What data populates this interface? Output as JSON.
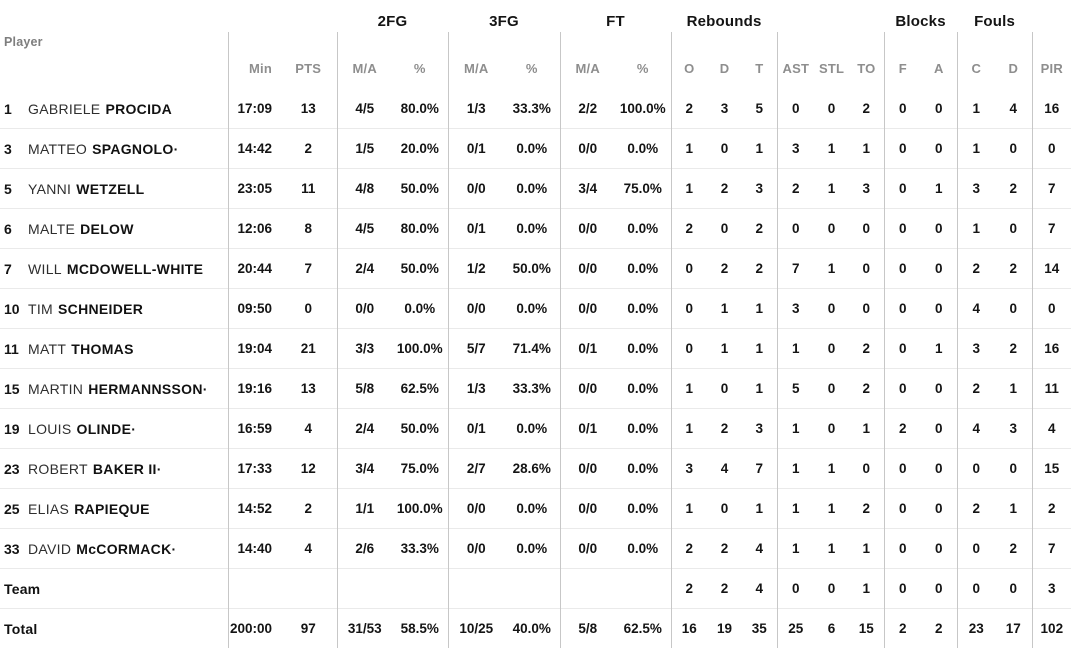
{
  "header": {
    "player": "Player",
    "min": "Min",
    "pts": "PTS",
    "fg2": "2FG",
    "fg3": "3FG",
    "ft": "FT",
    "rebounds": "Rebounds",
    "blocks": "Blocks",
    "fouls": "Fouls",
    "ma": "M/A",
    "pct": "%",
    "o": "O",
    "d": "D",
    "t": "T",
    "ast": "AST",
    "stl": "STL",
    "to": "TO",
    "f": "F",
    "a": "A",
    "c": "C",
    "fouls_d": "D",
    "pir": "PIR"
  },
  "colors": {
    "text_dark": "#141414",
    "text_gray": "#8e8e8e",
    "divider": "#c7c7c7",
    "row_border": "#eaeaea",
    "background": "#ffffff"
  },
  "table": {
    "rows": [
      {
        "number": "1",
        "first": "GABRIELE",
        "last": "PROCIDA",
        "stats": [
          "17:09",
          "13",
          "4/5",
          "80.0%",
          "1/3",
          "33.3%",
          "2/2",
          "100.0%",
          "2",
          "3",
          "5",
          "0",
          "0",
          "2",
          "0",
          "0",
          "1",
          "4",
          "16"
        ]
      },
      {
        "number": "3",
        "first": "MATTEO",
        "last": "SPAGNOLO·",
        "stats": [
          "14:42",
          "2",
          "1/5",
          "20.0%",
          "0/1",
          "0.0%",
          "0/0",
          "0.0%",
          "1",
          "0",
          "1",
          "3",
          "1",
          "1",
          "0",
          "0",
          "1",
          "0",
          "0"
        ]
      },
      {
        "number": "5",
        "first": "YANNI",
        "last": "WETZELL",
        "stats": [
          "23:05",
          "11",
          "4/8",
          "50.0%",
          "0/0",
          "0.0%",
          "3/4",
          "75.0%",
          "1",
          "2",
          "3",
          "2",
          "1",
          "3",
          "0",
          "1",
          "3",
          "2",
          "7"
        ]
      },
      {
        "number": "6",
        "first": "MALTE",
        "last": "DELOW",
        "stats": [
          "12:06",
          "8",
          "4/5",
          "80.0%",
          "0/1",
          "0.0%",
          "0/0",
          "0.0%",
          "2",
          "0",
          "2",
          "0",
          "0",
          "0",
          "0",
          "0",
          "1",
          "0",
          "7"
        ]
      },
      {
        "number": "7",
        "first": "WILL",
        "last": "MCDOWELL-WHITE",
        "stats": [
          "20:44",
          "7",
          "2/4",
          "50.0%",
          "1/2",
          "50.0%",
          "0/0",
          "0.0%",
          "0",
          "2",
          "2",
          "7",
          "1",
          "0",
          "0",
          "0",
          "2",
          "2",
          "14"
        ]
      },
      {
        "number": "10",
        "first": "TIM",
        "last": "SCHNEIDER",
        "stats": [
          "09:50",
          "0",
          "0/0",
          "0.0%",
          "0/0",
          "0.0%",
          "0/0",
          "0.0%",
          "0",
          "1",
          "1",
          "3",
          "0",
          "0",
          "0",
          "0",
          "4",
          "0",
          "0"
        ]
      },
      {
        "number": "11",
        "first": "MATT",
        "last": "THOMAS",
        "stats": [
          "19:04",
          "21",
          "3/3",
          "100.0%",
          "5/7",
          "71.4%",
          "0/1",
          "0.0%",
          "0",
          "1",
          "1",
          "1",
          "0",
          "2",
          "0",
          "1",
          "3",
          "2",
          "16"
        ]
      },
      {
        "number": "15",
        "first": "MARTIN",
        "last": "HERMANNSSON·",
        "stats": [
          "19:16",
          "13",
          "5/8",
          "62.5%",
          "1/3",
          "33.3%",
          "0/0",
          "0.0%",
          "1",
          "0",
          "1",
          "5",
          "0",
          "2",
          "0",
          "0",
          "2",
          "1",
          "11"
        ]
      },
      {
        "number": "19",
        "first": "LOUIS",
        "last": "OLINDE·",
        "stats": [
          "16:59",
          "4",
          "2/4",
          "50.0%",
          "0/1",
          "0.0%",
          "0/1",
          "0.0%",
          "1",
          "2",
          "3",
          "1",
          "0",
          "1",
          "2",
          "0",
          "4",
          "3",
          "4"
        ]
      },
      {
        "number": "23",
        "first": "ROBERT",
        "last": "BAKER II·",
        "stats": [
          "17:33",
          "12",
          "3/4",
          "75.0%",
          "2/7",
          "28.6%",
          "0/0",
          "0.0%",
          "3",
          "4",
          "7",
          "1",
          "1",
          "0",
          "0",
          "0",
          "0",
          "0",
          "15"
        ]
      },
      {
        "number": "25",
        "first": "ELIAS",
        "last": "RAPIEQUE",
        "stats": [
          "14:52",
          "2",
          "1/1",
          "100.0%",
          "0/0",
          "0.0%",
          "0/0",
          "0.0%",
          "1",
          "0",
          "1",
          "1",
          "1",
          "2",
          "0",
          "0",
          "2",
          "1",
          "2"
        ]
      },
      {
        "number": "33",
        "first": "DAVID",
        "last": "McCORMACK·",
        "stats": [
          "14:40",
          "4",
          "2/6",
          "33.3%",
          "0/0",
          "0.0%",
          "0/0",
          "0.0%",
          "2",
          "2",
          "4",
          "1",
          "1",
          "1",
          "0",
          "0",
          "0",
          "2",
          "7"
        ]
      },
      {
        "label": "Team",
        "stats": [
          "",
          "",
          "",
          "",
          "",
          "",
          "",
          "",
          "2",
          "2",
          "4",
          "0",
          "0",
          "1",
          "0",
          "0",
          "0",
          "0",
          "3"
        ]
      },
      {
        "label": "Total",
        "stats": [
          "200:00",
          "97",
          "31/53",
          "58.5%",
          "10/25",
          "40.0%",
          "5/8",
          "62.5%",
          "16",
          "19",
          "35",
          "25",
          "6",
          "15",
          "2",
          "2",
          "23",
          "17",
          "102"
        ]
      }
    ]
  }
}
